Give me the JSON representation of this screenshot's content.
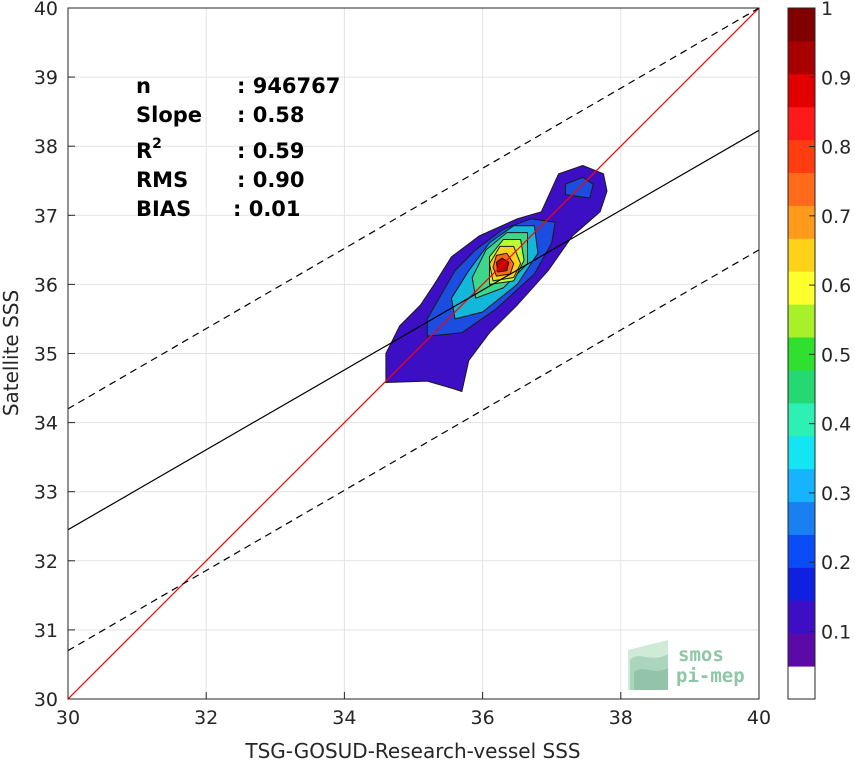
{
  "chart_data": {
    "type": "contour-scatter",
    "xlabel": "TSG-GOSUD-Research-vessel SSS",
    "ylabel": "Satellite SSS",
    "xlim": [
      30,
      40
    ],
    "ylim": [
      30,
      40
    ],
    "xticks": [
      "30",
      "32",
      "34",
      "36",
      "38",
      "40"
    ],
    "yticks": [
      "30",
      "31",
      "32",
      "33",
      "34",
      "35",
      "36",
      "37",
      "38",
      "39",
      "40"
    ],
    "grid": true,
    "stats": {
      "n": {
        "label": "n",
        "value": ": 946767"
      },
      "slope": {
        "label": "Slope",
        "value": ": 0.58"
      },
      "r2": {
        "label": "R",
        "sup": "2",
        "value": ": 0.59"
      },
      "rms": {
        "label": "RMS",
        "value": ": 0.90"
      },
      "bias": {
        "label": "BIAS",
        "value": ": 0.01"
      }
    },
    "lines": {
      "one_to_one": {
        "from": [
          30,
          30
        ],
        "to": [
          40,
          40
        ],
        "color": "#ff0000"
      },
      "regression": {
        "from": [
          30,
          32.45
        ],
        "to": [
          40,
          38.23
        ],
        "color": "#000000"
      },
      "upper_band": {
        "from": [
          30,
          34.2
        ],
        "to": [
          40,
          40.0
        ],
        "color": "#000000",
        "dash": true
      },
      "lower_band": {
        "from": [
          30,
          30.7
        ],
        "to": [
          40,
          36.5
        ],
        "color": "#000000",
        "dash": true
      }
    },
    "density_contours": [
      {
        "level": 0.05,
        "color": "#3d0fc4",
        "points": [
          [
            34.6,
            34.58
          ],
          [
            35.2,
            34.6
          ],
          [
            35.55,
            34.5
          ],
          [
            35.7,
            34.45
          ],
          [
            35.8,
            34.9
          ],
          [
            36.1,
            35.3
          ],
          [
            36.5,
            35.7
          ],
          [
            36.95,
            36.2
          ],
          [
            37.3,
            36.7
          ],
          [
            37.7,
            37.05
          ],
          [
            37.8,
            37.35
          ],
          [
            37.75,
            37.6
          ],
          [
            37.45,
            37.72
          ],
          [
            37.1,
            37.6
          ],
          [
            36.85,
            37.05
          ],
          [
            36.5,
            36.95
          ],
          [
            35.95,
            36.7
          ],
          [
            35.55,
            36.4
          ],
          [
            35.3,
            36.0
          ],
          [
            35.1,
            35.7
          ],
          [
            34.8,
            35.4
          ],
          [
            34.6,
            35.0
          ]
        ]
      },
      {
        "level": 0.15,
        "color": "#1a4de0",
        "points": [
          [
            35.2,
            35.25
          ],
          [
            35.7,
            35.3
          ],
          [
            36.2,
            35.65
          ],
          [
            36.75,
            36.15
          ],
          [
            37.0,
            36.6
          ],
          [
            37.05,
            36.9
          ],
          [
            36.7,
            36.95
          ],
          [
            36.3,
            36.8
          ],
          [
            35.9,
            36.5
          ],
          [
            35.6,
            36.2
          ],
          [
            35.2,
            35.5
          ]
        ]
      },
      {
        "level": 0.3,
        "color": "#13b7d9",
        "points": [
          [
            35.6,
            35.5
          ],
          [
            36.0,
            35.6
          ],
          [
            36.5,
            36.0
          ],
          [
            36.8,
            36.45
          ],
          [
            36.75,
            36.85
          ],
          [
            36.45,
            36.85
          ],
          [
            36.1,
            36.6
          ],
          [
            35.8,
            36.2
          ],
          [
            35.55,
            35.8
          ]
        ]
      },
      {
        "level": 0.5,
        "color": "#3dd68a",
        "points": [
          [
            35.9,
            35.8
          ],
          [
            36.3,
            35.95
          ],
          [
            36.65,
            36.3
          ],
          [
            36.65,
            36.75
          ],
          [
            36.35,
            36.75
          ],
          [
            36.05,
            36.5
          ],
          [
            35.85,
            36.1
          ]
        ]
      },
      {
        "level": 0.6,
        "color": "#b8ff33",
        "points": [
          [
            36.1,
            36.0
          ],
          [
            36.45,
            36.05
          ],
          [
            36.6,
            36.35
          ],
          [
            36.55,
            36.65
          ],
          [
            36.3,
            36.65
          ],
          [
            36.1,
            36.4
          ]
        ]
      },
      {
        "level": 0.75,
        "color": "#ffd21a",
        "points": [
          [
            36.15,
            36.05
          ],
          [
            36.45,
            36.1
          ],
          [
            36.55,
            36.3
          ],
          [
            36.45,
            36.55
          ],
          [
            36.25,
            36.55
          ],
          [
            36.1,
            36.3
          ]
        ]
      },
      {
        "level": 0.85,
        "color": "#ff6b1a",
        "points": [
          [
            36.2,
            36.12
          ],
          [
            36.4,
            36.15
          ],
          [
            36.45,
            36.3
          ],
          [
            36.35,
            36.45
          ],
          [
            36.2,
            36.42
          ],
          [
            36.15,
            36.25
          ]
        ]
      },
      {
        "level": 0.95,
        "color": "#c40000",
        "points": [
          [
            36.22,
            36.18
          ],
          [
            36.35,
            36.2
          ],
          [
            36.38,
            36.32
          ],
          [
            36.28,
            36.38
          ],
          [
            36.2,
            36.32
          ]
        ]
      },
      {
        "level": 0.15,
        "color": "#1a4de0",
        "points": [
          [
            37.2,
            37.3
          ],
          [
            37.55,
            37.25
          ],
          [
            37.6,
            37.45
          ],
          [
            37.45,
            37.55
          ],
          [
            37.2,
            37.45
          ]
        ]
      }
    ],
    "colorbar": {
      "ticks": [
        "0.1",
        "0.2",
        "0.3",
        "0.4",
        "0.5",
        "0.6",
        "0.7",
        "0.8",
        "0.9",
        "1"
      ],
      "colors": [
        "#ffffff",
        "#5b0aa8",
        "#3d0fc4",
        "#1020e0",
        "#0a4cf5",
        "#1a7ff0",
        "#16b4ff",
        "#13e6f2",
        "#2cf0b4",
        "#24d872",
        "#2fe030",
        "#a8f02a",
        "#ffff2e",
        "#ffd21a",
        "#ff9a1a",
        "#ff6b1a",
        "#ff3d10",
        "#ff1a1a",
        "#e00000",
        "#a80000",
        "#800000"
      ]
    }
  },
  "logo": {
    "line1": "smos",
    "line2": "pi-mep"
  }
}
